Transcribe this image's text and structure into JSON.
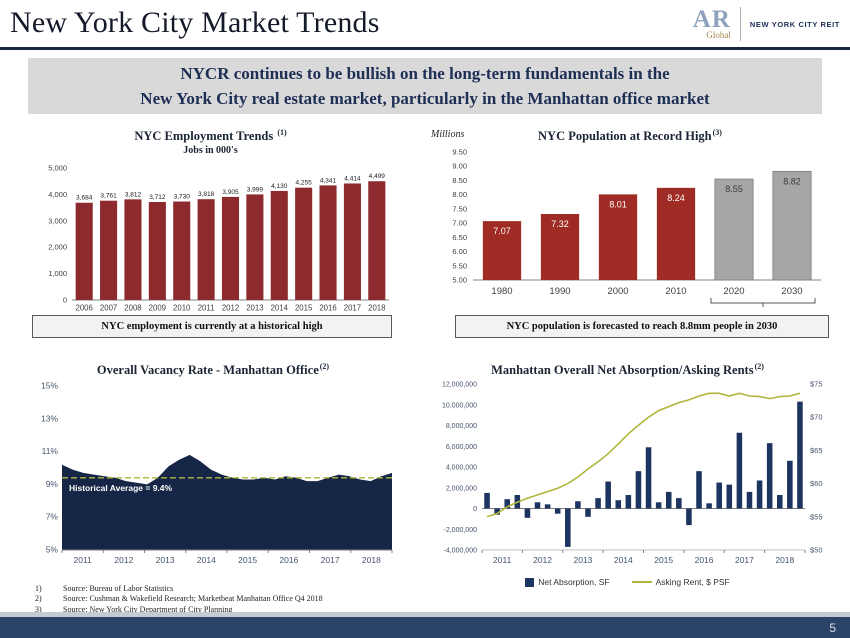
{
  "page": {
    "title": "New York City Market Trends",
    "page_number": "5"
  },
  "logo": {
    "ar": "AR",
    "global": "Global",
    "brand": "NEW YORK CITY REIT"
  },
  "banner": {
    "line1": "NYCR continues to be bullish on the long-term fundamentals in the",
    "line2": "New York City real estate market, particularly in the Manhattan office market"
  },
  "captions": {
    "employment": "NYC employment is currently at a historical high",
    "population": "NYC population is forecasted to reach 8.8mm people in 2030"
  },
  "footnotes": [
    {
      "num": "1)",
      "text": "Source:  Bureau of Labor Statistics"
    },
    {
      "num": "2)",
      "text": "Source:  Cushman & Wakefield Research; Marketbeat  Manhattan  Office Q4 2018"
    },
    {
      "num": "3)",
      "text": "Source:  New York City Department  of City Planning"
    }
  ],
  "colors": {
    "dark_red": "#8c2a2d",
    "population_red": "#9e2b24",
    "forecast_gray": "#a6a6a6",
    "navy": "#152647",
    "bar_navy": "#1d3461",
    "olive": "#b0b63c",
    "banner_bg": "#d9d9d9",
    "heading_navy": "#1e2f55",
    "footer_navy": "#2c4468"
  },
  "chart_data": [
    {
      "id": "employment",
      "type": "bar",
      "title": "NYC Employment Trends ",
      "title_sup": "(1)",
      "subtitle": "Jobs in 000's",
      "categories": [
        "2006",
        "2007",
        "2008",
        "2009",
        "2010",
        "2011",
        "2012",
        "2013",
        "2014",
        "2015",
        "2016",
        "2017",
        "2018"
      ],
      "values": [
        3684,
        3761,
        3812,
        3712,
        3730,
        3818,
        3905,
        3999,
        4130,
        4255,
        4341,
        4414,
        4499
      ],
      "value_labels": [
        "3,684",
        "3,761",
        "3,812",
        "3,712",
        "3,730",
        "3,818",
        "3,905",
        "3,999",
        "4,130",
        "4,255",
        "4,341",
        "4,414",
        "4,499"
      ],
      "ylim": [
        0,
        5000
      ],
      "yticks": [
        {
          "v": 5000,
          "label": "5,000"
        },
        {
          "v": 4000,
          "label": "4,000"
        },
        {
          "v": 3000,
          "label": "3,000"
        },
        {
          "v": 2000,
          "label": "2,000"
        },
        {
          "v": 1000,
          "label": "1,000"
        },
        {
          "v": 0,
          "label": "0"
        }
      ],
      "bar_color": "#8c2a2d"
    },
    {
      "id": "population",
      "type": "bar",
      "title": "NYC Population at Record High",
      "title_sup": "(3)",
      "unit_label": "Millions",
      "categories": [
        "1980",
        "1990",
        "2000",
        "2010",
        "2020",
        "2030"
      ],
      "values": [
        7.07,
        7.32,
        8.01,
        8.24,
        8.55,
        8.82
      ],
      "value_labels": [
        "7.07",
        "7.32",
        "8.01",
        "8.24",
        "8.55",
        "8.82"
      ],
      "bar_fills": [
        "#9e2b24",
        "#9e2b24",
        "#9e2b24",
        "#9e2b24",
        "#a6a6a6",
        "#a6a6a6"
      ],
      "label_fills": [
        "#ffffff",
        "#ffffff",
        "#ffffff",
        "#ffffff",
        "#3b3b3b",
        "#3b3b3b"
      ],
      "forecast_start_index": 4,
      "ylim": [
        5.0,
        9.5
      ],
      "yticks": [
        {
          "v": 9.5,
          "label": "9.50"
        },
        {
          "v": 9.0,
          "label": "9.00"
        },
        {
          "v": 8.5,
          "label": "8.50"
        },
        {
          "v": 8.0,
          "label": "8.00"
        },
        {
          "v": 7.5,
          "label": "7.50"
        },
        {
          "v": 7.0,
          "label": "7.00"
        },
        {
          "v": 6.5,
          "label": "6.50"
        },
        {
          "v": 6.0,
          "label": "6.00"
        },
        {
          "v": 5.5,
          "label": "5.50"
        },
        {
          "v": 5.0,
          "label": "5.00"
        }
      ]
    },
    {
      "id": "vacancy",
      "type": "area",
      "title": "Overall Vacancy Rate - Manhattan Office",
      "title_sup": "(2)",
      "x_labels": [
        "2011",
        "2012",
        "2013",
        "2014",
        "2015",
        "2016",
        "2017",
        "2018"
      ],
      "values": [
        10.2,
        9.9,
        9.7,
        9.6,
        9.5,
        9.4,
        9.2,
        9.1,
        9.0,
        9.4,
        10.1,
        10.5,
        10.8,
        10.4,
        9.9,
        9.6,
        9.4,
        9.3,
        9.3,
        9.4,
        9.3,
        9.5,
        9.4,
        9.2,
        9.2,
        9.4,
        9.6,
        9.5,
        9.3,
        9.2,
        9.5,
        9.7
      ],
      "ylim": [
        5,
        15
      ],
      "yticks": [
        {
          "v": 15,
          "label": "15%"
        },
        {
          "v": 13,
          "label": "13%"
        },
        {
          "v": 11,
          "label": "11%"
        },
        {
          "v": 9,
          "label": "9%"
        },
        {
          "v": 7,
          "label": "7%"
        },
        {
          "v": 5,
          "label": "5%"
        }
      ],
      "avg_line": 9.4,
      "avg_label": "Historical Average = 9.4%",
      "avg_color": "#b0b63c",
      "fill": "#152647"
    },
    {
      "id": "absorption",
      "type": "combo",
      "title": "Manhattan Overall Net Absorption/Asking Rents",
      "title_sup": "(2)",
      "x_labels": [
        "2011",
        "2012",
        "2013",
        "2014",
        "2015",
        "2016",
        "2017",
        "2018"
      ],
      "bars": [
        1500000,
        -600000,
        900000,
        1300000,
        -900000,
        600000,
        400000,
        -500000,
        -3700000,
        700000,
        -800000,
        1000000,
        2600000,
        800000,
        1300000,
        3600000,
        5900000,
        600000,
        1600000,
        1000000,
        -1600000,
        3600000,
        500000,
        2500000,
        2300000,
        7300000,
        1600000,
        2700000,
        6300000,
        1300000,
        4600000,
        10300000
      ],
      "line": [
        55,
        55.5,
        56.5,
        57.2,
        57.8,
        58.3,
        58.8,
        59.3,
        60,
        61,
        62.2,
        63.3,
        64.5,
        66,
        67.5,
        68.8,
        70,
        71,
        71.6,
        72.2,
        72.6,
        73.2,
        73.6,
        73.6,
        73.2,
        73.6,
        73.2,
        73.1,
        72.8,
        73.1,
        73.2,
        73.6
      ],
      "bar_axis": {
        "lim": [
          -4000000,
          12000000
        ],
        "ticks": [
          {
            "v": 12000000,
            "label": "12,000,000"
          },
          {
            "v": 10000000,
            "label": "10,000,000"
          },
          {
            "v": 8000000,
            "label": "8,000,000"
          },
          {
            "v": 6000000,
            "label": "6,000,000"
          },
          {
            "v": 4000000,
            "label": "4,000,000"
          },
          {
            "v": 2000000,
            "label": "2,000,000"
          },
          {
            "v": 0,
            "label": "0"
          },
          {
            "v": -2000000,
            "label": "-2,000,000"
          },
          {
            "v": -4000000,
            "label": "-4,000,000"
          }
        ]
      },
      "line_axis": {
        "lim": [
          50,
          75
        ],
        "ticks": [
          {
            "v": 75,
            "label": "$75"
          },
          {
            "v": 70,
            "label": "$70"
          },
          {
            "v": 65,
            "label": "$65"
          },
          {
            "v": 60,
            "label": "$60"
          },
          {
            "v": 55,
            "label": "$55"
          },
          {
            "v": 50,
            "label": "$50"
          }
        ]
      },
      "bar_color": "#1d3461",
      "line_color": "#b0b63c",
      "legend": [
        {
          "label": "Net Absorption, SF",
          "color": "#1d3461",
          "type": "bar"
        },
        {
          "label": "Asking Rent, $ PSF",
          "color": "#b0b63c",
          "type": "line"
        }
      ]
    }
  ]
}
